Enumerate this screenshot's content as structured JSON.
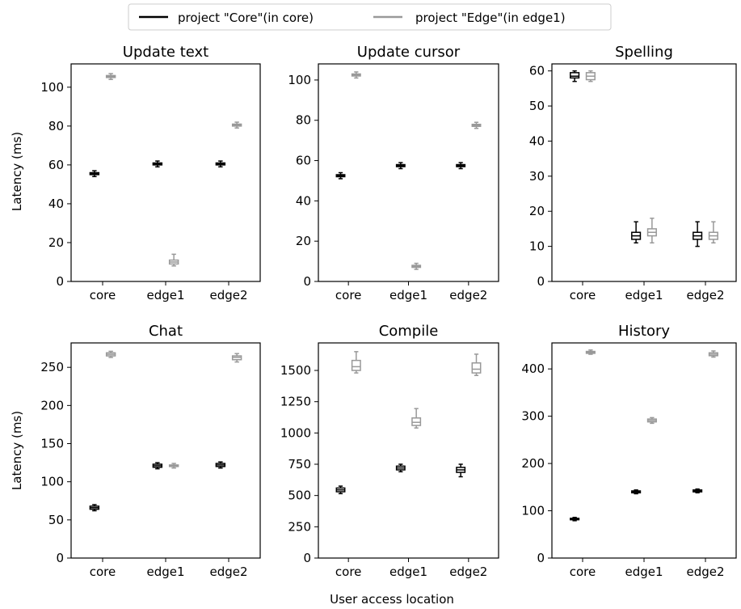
{
  "legend": {
    "core_label": "project \"Core\"(in core)",
    "edge_label": "project \"Edge\"(in edge1)"
  },
  "colors": {
    "core": "#000000",
    "edge": "#999999"
  },
  "xlabel": "User access location",
  "ylabel": "Latency (ms)",
  "chart_data": [
    {
      "type": "box",
      "title": "Update text",
      "categories": [
        "core",
        "edge1",
        "edge2"
      ],
      "ylim": [
        0,
        112
      ],
      "yticks": [
        0,
        20,
        40,
        60,
        80,
        100
      ],
      "series": [
        {
          "name": "project \"Core\"(in core)",
          "boxes": [
            {
              "min": 54,
              "q1": 55,
              "median": 55.5,
              "q3": 56,
              "max": 57
            },
            {
              "min": 59,
              "q1": 60,
              "median": 60.5,
              "q3": 61,
              "max": 62
            },
            {
              "min": 59,
              "q1": 60,
              "median": 60.5,
              "q3": 61,
              "max": 62
            }
          ]
        },
        {
          "name": "project \"Edge\"(in edge1)",
          "boxes": [
            {
              "min": 104,
              "q1": 105,
              "median": 105.5,
              "q3": 106,
              "max": 107
            },
            {
              "min": 8,
              "q1": 9,
              "median": 10,
              "q3": 11,
              "max": 14
            },
            {
              "min": 79,
              "q1": 80,
              "median": 80.5,
              "q3": 81,
              "max": 82
            }
          ]
        }
      ]
    },
    {
      "type": "box",
      "title": "Update cursor",
      "categories": [
        "core",
        "edge1",
        "edge2"
      ],
      "ylim": [
        0,
        108
      ],
      "yticks": [
        0,
        20,
        40,
        60,
        80,
        100
      ],
      "series": [
        {
          "name": "project \"Core\"(in core)",
          "boxes": [
            {
              "min": 51,
              "q1": 52,
              "median": 52.5,
              "q3": 53,
              "max": 54
            },
            {
              "min": 56,
              "q1": 57,
              "median": 57.5,
              "q3": 58,
              "max": 59
            },
            {
              "min": 56,
              "q1": 57,
              "median": 57.5,
              "q3": 58,
              "max": 59
            }
          ]
        },
        {
          "name": "project \"Edge\"(in edge1)",
          "boxes": [
            {
              "min": 101,
              "q1": 102,
              "median": 102.5,
              "q3": 103,
              "max": 104
            },
            {
              "min": 6,
              "q1": 7,
              "median": 7.5,
              "q3": 8,
              "max": 9
            },
            {
              "min": 76,
              "q1": 77,
              "median": 77.5,
              "q3": 78,
              "max": 79
            }
          ]
        }
      ]
    },
    {
      "type": "box",
      "title": "Spelling",
      "categories": [
        "core",
        "edge1",
        "edge2"
      ],
      "ylim": [
        0,
        62
      ],
      "yticks": [
        0,
        10,
        20,
        30,
        40,
        50,
        60
      ],
      "series": [
        {
          "name": "project \"Core\"(in core)",
          "boxes": [
            {
              "min": 57,
              "q1": 58,
              "median": 58.5,
              "q3": 59.5,
              "max": 60
            },
            {
              "min": 11,
              "q1": 12,
              "median": 13,
              "q3": 14,
              "max": 17
            },
            {
              "min": 10,
              "q1": 12,
              "median": 13,
              "q3": 14,
              "max": 17
            }
          ]
        },
        {
          "name": "project \"Edge\"(in edge1)",
          "boxes": [
            {
              "min": 57,
              "q1": 57.5,
              "median": 58.5,
              "q3": 59.5,
              "max": 60
            },
            {
              "min": 11,
              "q1": 13,
              "median": 14,
              "q3": 15,
              "max": 18
            },
            {
              "min": 11,
              "q1": 12,
              "median": 13,
              "q3": 14,
              "max": 17
            }
          ]
        }
      ]
    },
    {
      "type": "box",
      "title": "Chat",
      "categories": [
        "core",
        "edge1",
        "edge2"
      ],
      "ylim": [
        0,
        282
      ],
      "yticks": [
        0,
        50,
        100,
        150,
        200,
        250
      ],
      "series": [
        {
          "name": "project \"Core\"(in core)",
          "boxes": [
            {
              "min": 62,
              "q1": 64,
              "median": 66,
              "q3": 68,
              "max": 70
            },
            {
              "min": 117,
              "q1": 119,
              "median": 121,
              "q3": 123,
              "max": 125
            },
            {
              "min": 118,
              "q1": 120,
              "median": 122,
              "q3": 124,
              "max": 126
            }
          ]
        },
        {
          "name": "project \"Edge\"(in edge1)",
          "boxes": [
            {
              "min": 263,
              "q1": 265,
              "median": 267,
              "q3": 269,
              "max": 271
            },
            {
              "min": 118,
              "q1": 120,
              "median": 121,
              "q3": 122,
              "max": 124
            },
            {
              "min": 257,
              "q1": 260,
              "median": 263,
              "q3": 265,
              "max": 268
            }
          ]
        }
      ]
    },
    {
      "type": "box",
      "title": "Compile",
      "categories": [
        "core",
        "edge1",
        "edge2"
      ],
      "ylim": [
        0,
        1720
      ],
      "yticks": [
        0,
        250,
        500,
        750,
        1000,
        1250,
        1500
      ],
      "series": [
        {
          "name": "project \"Core\"(in core)",
          "boxes": [
            {
              "min": 515,
              "q1": 530,
              "median": 545,
              "q3": 560,
              "max": 575
            },
            {
              "min": 690,
              "q1": 705,
              "median": 720,
              "q3": 735,
              "max": 750
            },
            {
              "min": 650,
              "q1": 685,
              "median": 705,
              "q3": 725,
              "max": 750
            }
          ]
        },
        {
          "name": "project \"Edge\"(in edge1)",
          "boxes": [
            {
              "min": 1480,
              "q1": 1500,
              "median": 1530,
              "q3": 1580,
              "max": 1650
            },
            {
              "min": 1040,
              "q1": 1060,
              "median": 1085,
              "q3": 1120,
              "max": 1195
            },
            {
              "min": 1460,
              "q1": 1480,
              "median": 1510,
              "q3": 1560,
              "max": 1630
            }
          ]
        }
      ]
    },
    {
      "type": "box",
      "title": "History",
      "categories": [
        "core",
        "edge1",
        "edge2"
      ],
      "ylim": [
        0,
        455
      ],
      "yticks": [
        0,
        100,
        200,
        300,
        400
      ],
      "series": [
        {
          "name": "project \"Core\"(in core)",
          "boxes": [
            {
              "min": 79,
              "q1": 81,
              "median": 82,
              "q3": 84,
              "max": 86
            },
            {
              "min": 136,
              "q1": 138,
              "median": 140,
              "q3": 142,
              "max": 144
            },
            {
              "min": 138,
              "q1": 140,
              "median": 142,
              "q3": 144,
              "max": 146
            }
          ]
        },
        {
          "name": "project \"Edge\"(in edge1)",
          "boxes": [
            {
              "min": 431,
              "q1": 433,
              "median": 435,
              "q3": 437,
              "max": 440
            },
            {
              "min": 285,
              "q1": 288,
              "median": 291,
              "q3": 294,
              "max": 297
            },
            {
              "min": 425,
              "q1": 428,
              "median": 431,
              "q3": 434,
              "max": 438
            }
          ]
        }
      ]
    }
  ]
}
